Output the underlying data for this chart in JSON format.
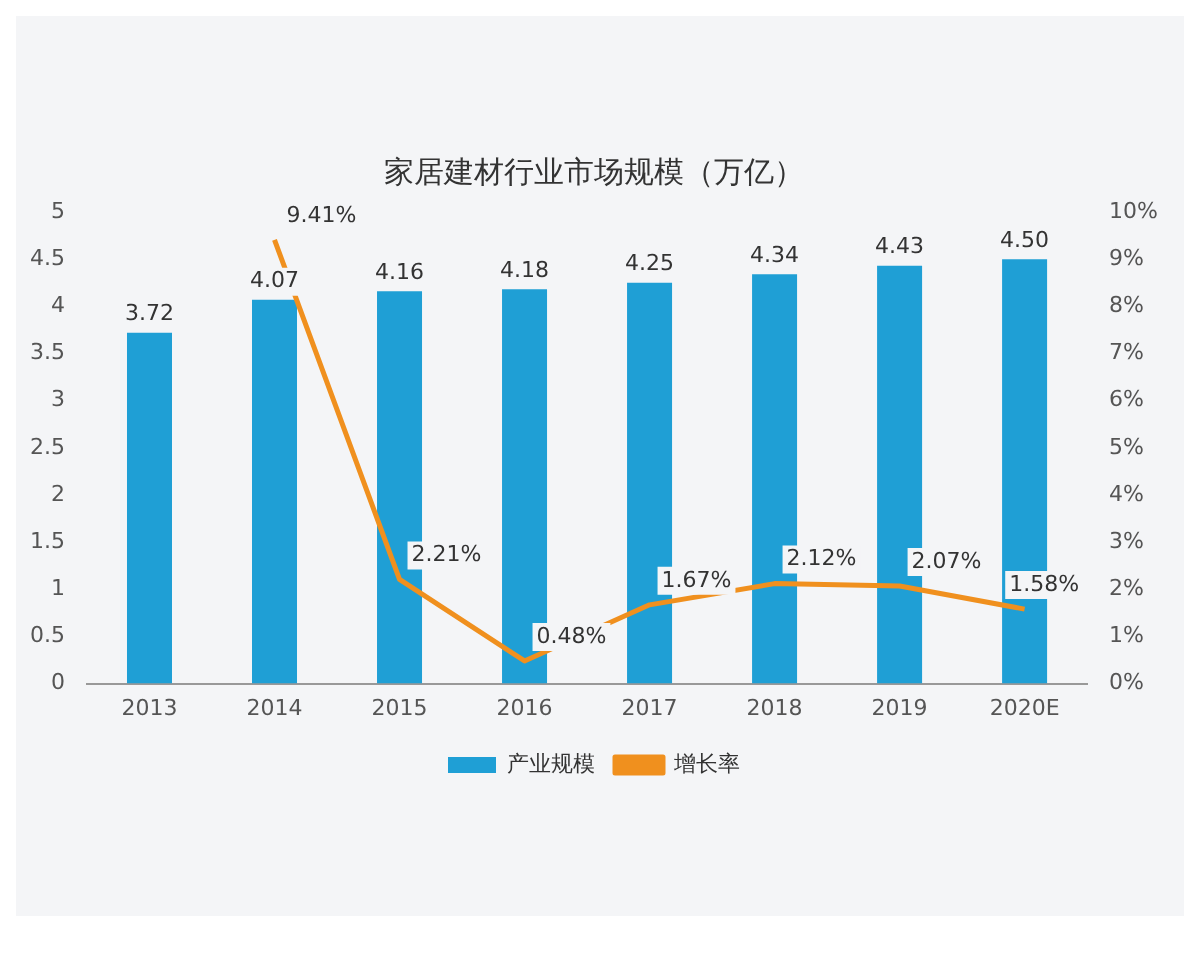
{
  "chart_data": {
    "type": "bar",
    "title": "家居建材行业市场规模（万亿）",
    "categories": [
      "2013",
      "2014",
      "2015",
      "2016",
      "2017",
      "2018",
      "2019",
      "2020E"
    ],
    "series": [
      {
        "name": "产业规模",
        "color": "#1f9fd5",
        "values": [
          3.72,
          4.07,
          4.16,
          4.18,
          4.25,
          4.34,
          4.43,
          4.5
        ],
        "value_labels": [
          "3.72",
          "4.07",
          "4.16",
          "4.18",
          "4.25",
          "4.34",
          "4.43",
          "4.50"
        ]
      },
      {
        "name": "增长率",
        "type": "line",
        "axis": "y2",
        "color": "#f0901e",
        "values": [
          null,
          9.41,
          2.21,
          0.48,
          1.67,
          2.12,
          2.07,
          1.58
        ],
        "value_labels": [
          null,
          "9.41%",
          "2.21%",
          "0.48%",
          "1.67%",
          "2.12%",
          "2.07%",
          "1.58%"
        ]
      }
    ],
    "ylim": [
      0,
      5
    ],
    "yticks": [
      0,
      0.5,
      1,
      1.5,
      2,
      2.5,
      3,
      3.5,
      4,
      4.5,
      5
    ],
    "y2lim": [
      0,
      10
    ],
    "y2ticks": [
      {
        "value": 0,
        "label": "0%"
      },
      {
        "value": 1,
        "label": "1%"
      },
      {
        "value": 2,
        "label": "2%"
      },
      {
        "value": 3,
        "label": "3%"
      },
      {
        "value": 4,
        "label": "4%"
      },
      {
        "value": 5,
        "label": "5%"
      },
      {
        "value": 6,
        "label": "6%"
      },
      {
        "value": 7,
        "label": "7%"
      },
      {
        "value": 8,
        "label": "8%"
      },
      {
        "value": 9,
        "label": "9%"
      },
      {
        "value": 10,
        "label": "10%"
      }
    ],
    "grid": false,
    "legend": "bottom",
    "marker": "none",
    "line_style": "solid"
  }
}
